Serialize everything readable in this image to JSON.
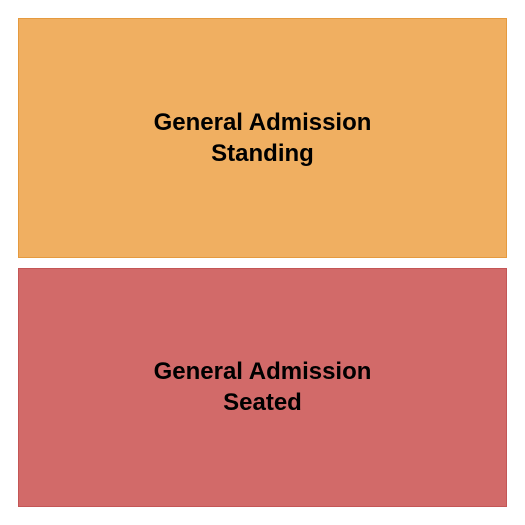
{
  "seating_chart": {
    "type": "infographic",
    "background_color": "#ffffff",
    "padding": 18,
    "gap": 10,
    "sections": [
      {
        "label": "General Admission\nStanding",
        "background_color": "#f0af61",
        "border_color": "#e59a3f",
        "border_width": 1,
        "text_color": "#000000",
        "font_size": 24,
        "font_weight": "bold"
      },
      {
        "label": "General Admission\nSeated",
        "background_color": "#d26a69",
        "border_color": "#c45656",
        "border_width": 1,
        "text_color": "#000000",
        "font_size": 24,
        "font_weight": "bold"
      }
    ]
  }
}
